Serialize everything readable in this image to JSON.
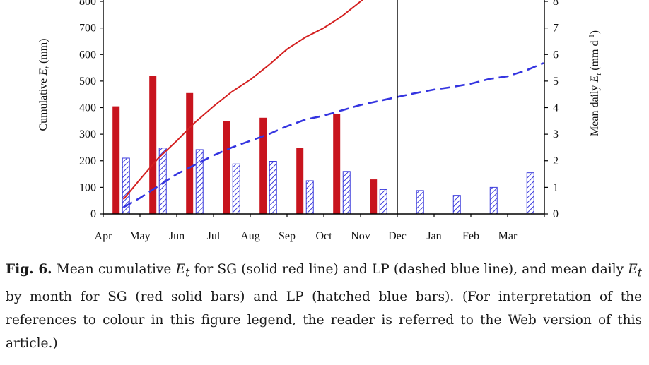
{
  "chart_data": {
    "type": "bar+line",
    "categories": [
      "Apr",
      "May",
      "Jun",
      "Jul",
      "Aug",
      "Sep",
      "Oct",
      "Nov",
      "Dec",
      "Jan",
      "Feb",
      "Mar"
    ],
    "y_left": {
      "label": "Cumulative",
      "label_symbol": "E",
      "label_subscript": "t",
      "label_unit": " (mm)",
      "range": [
        0,
        800
      ],
      "ticks": [
        0,
        100,
        200,
        300,
        400,
        500,
        600,
        700,
        800
      ]
    },
    "y_right": {
      "label": "Mean daily",
      "label_symbol": "E",
      "label_subscript": "t",
      "label_unit": " (mm d",
      "label_unit_sup": "-1",
      "label_unit_end": ")",
      "range": [
        0,
        8
      ],
      "ticks": [
        0,
        1,
        2,
        3,
        4,
        5,
        6,
        7,
        8
      ]
    },
    "bar_series": [
      {
        "key": "SG",
        "style": "solid",
        "color": "#c8141e",
        "values": [
          4.05,
          5.2,
          4.55,
          3.5,
          3.62,
          2.48,
          3.75,
          1.3,
          null,
          null,
          null,
          null
        ]
      },
      {
        "key": "LP",
        "style": "hatched",
        "color": "#3b3bdc",
        "values": [
          2.1,
          2.48,
          2.42,
          1.88,
          1.98,
          1.25,
          1.6,
          0.92,
          0.88,
          0.7,
          1.0,
          1.55
        ]
      }
    ],
    "line_series": [
      {
        "key": "SG",
        "style": "solid",
        "color": "#d42020",
        "x": [
          0.55,
          1.0,
          1.5,
          2.0,
          2.5,
          3.0,
          3.5,
          4.0,
          4.5,
          5.0,
          5.5,
          6.0,
          6.5,
          7.0,
          7.45
        ],
        "values": [
          55,
          130,
          210,
          275,
          345,
          405,
          460,
          505,
          560,
          620,
          665,
          700,
          745,
          800,
          850
        ]
      },
      {
        "key": "LP",
        "style": "dashed",
        "color": "#3434e0",
        "x": [
          0.55,
          1.0,
          1.5,
          2.0,
          2.5,
          3.0,
          3.5,
          4.0,
          4.5,
          5.0,
          5.5,
          6.0,
          6.5,
          7.0,
          7.5,
          8.0,
          8.5,
          9.0,
          9.5,
          10.0,
          10.5,
          11.0,
          11.5,
          11.98
        ],
        "values": [
          25,
          60,
          105,
          150,
          185,
          220,
          250,
          275,
          300,
          330,
          355,
          370,
          390,
          410,
          425,
          440,
          455,
          468,
          478,
          490,
          508,
          518,
          540,
          568
        ]
      }
    ],
    "vertical_divider_at": 8,
    "grid": false,
    "legend": "none"
  },
  "caption": {
    "label": "Fig. 6.",
    "p1": " Mean cumulative ",
    "sym1": "E",
    "sub1": "t",
    "p2": " for SG (solid red line) and LP (dashed blue line), and mean daily ",
    "sym2": "E",
    "sub2": "t",
    "p3": " by month for SG (red solid bars) and LP (hatched blue bars). (For interpretation of the references to colour in this figure legend, the reader is referred to the Web version of this article.)"
  }
}
